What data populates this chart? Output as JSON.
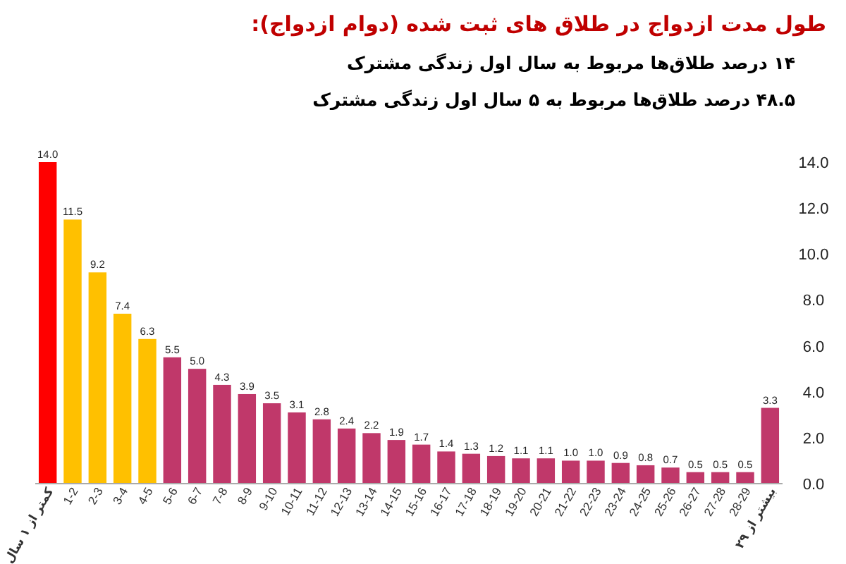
{
  "chart_data": {
    "type": "bar",
    "title": "طول مدت ازدواج در طلاق های ثبت شده (دوام ازدواج):",
    "annotations": [
      "۱۴ درصد طلاق‌ها مربوط به سال اول زندگی مشترک",
      "۴۸.۵ درصد طلاق‌ها مربوط به ۵ سال اول زندگی مشترک"
    ],
    "categories": [
      "کمتر از ۱ سال",
      "1-2",
      "2-3",
      "3-4",
      "4-5",
      "5-6",
      "6-7",
      "7-8",
      "8-9",
      "9-10",
      "10-11",
      "11-12",
      "12-13",
      "13-14",
      "14-15",
      "15-16",
      "16-17",
      "17-18",
      "18-19",
      "19-20",
      "20-21",
      "21-22",
      "22-23",
      "23-24",
      "24-25",
      "25-26",
      "26-27",
      "27-28",
      "28-29",
      "بیشتر از ۲۹"
    ],
    "values": [
      14.0,
      11.5,
      9.2,
      7.4,
      6.3,
      5.5,
      5.0,
      4.3,
      3.9,
      3.5,
      3.1,
      2.8,
      2.4,
      2.2,
      1.9,
      1.7,
      1.4,
      1.3,
      1.2,
      1.1,
      1.1,
      1.0,
      1.0,
      0.9,
      0.8,
      0.7,
      0.5,
      0.5,
      0.5,
      3.3
    ],
    "value_labels": [
      "14.0",
      "11.5",
      "9.2",
      "7.4",
      "6.3",
      "5.5",
      "5.0",
      "4.3",
      "3.9",
      "3.5",
      "3.1",
      "2.8",
      "2.4",
      "2.2",
      "1.9",
      "1.7",
      "1.4",
      "1.3",
      "1.2",
      "1.1",
      "1.1",
      "1.0",
      "1.0",
      "0.9",
      "0.8",
      "0.7",
      "0.5",
      "0.5",
      "0.5",
      "3.3"
    ],
    "colors": [
      "#ff0000",
      "#ffc000",
      "#ffc000",
      "#ffc000",
      "#ffc000",
      "#c0386a",
      "#c0386a",
      "#c0386a",
      "#c0386a",
      "#c0386a",
      "#c0386a",
      "#c0386a",
      "#c0386a",
      "#c0386a",
      "#c0386a",
      "#c0386a",
      "#c0386a",
      "#c0386a",
      "#c0386a",
      "#c0386a",
      "#c0386a",
      "#c0386a",
      "#c0386a",
      "#c0386a",
      "#c0386a",
      "#c0386a",
      "#c0386a",
      "#c0386a",
      "#c0386a",
      "#c0386a"
    ],
    "ylim": [
      0,
      14
    ],
    "yticks": [
      {
        "value": 0,
        "label": "0.0"
      },
      {
        "value": 2,
        "label": "2.0"
      },
      {
        "value": 4,
        "label": "4.0"
      },
      {
        "value": 6,
        "label": "6.0"
      },
      {
        "value": 8,
        "label": "8.0"
      },
      {
        "value": 10,
        "label": "10.0"
      },
      {
        "value": 12,
        "label": "12.0"
      },
      {
        "value": 14,
        "label": "14.0"
      }
    ],
    "grid": false
  }
}
